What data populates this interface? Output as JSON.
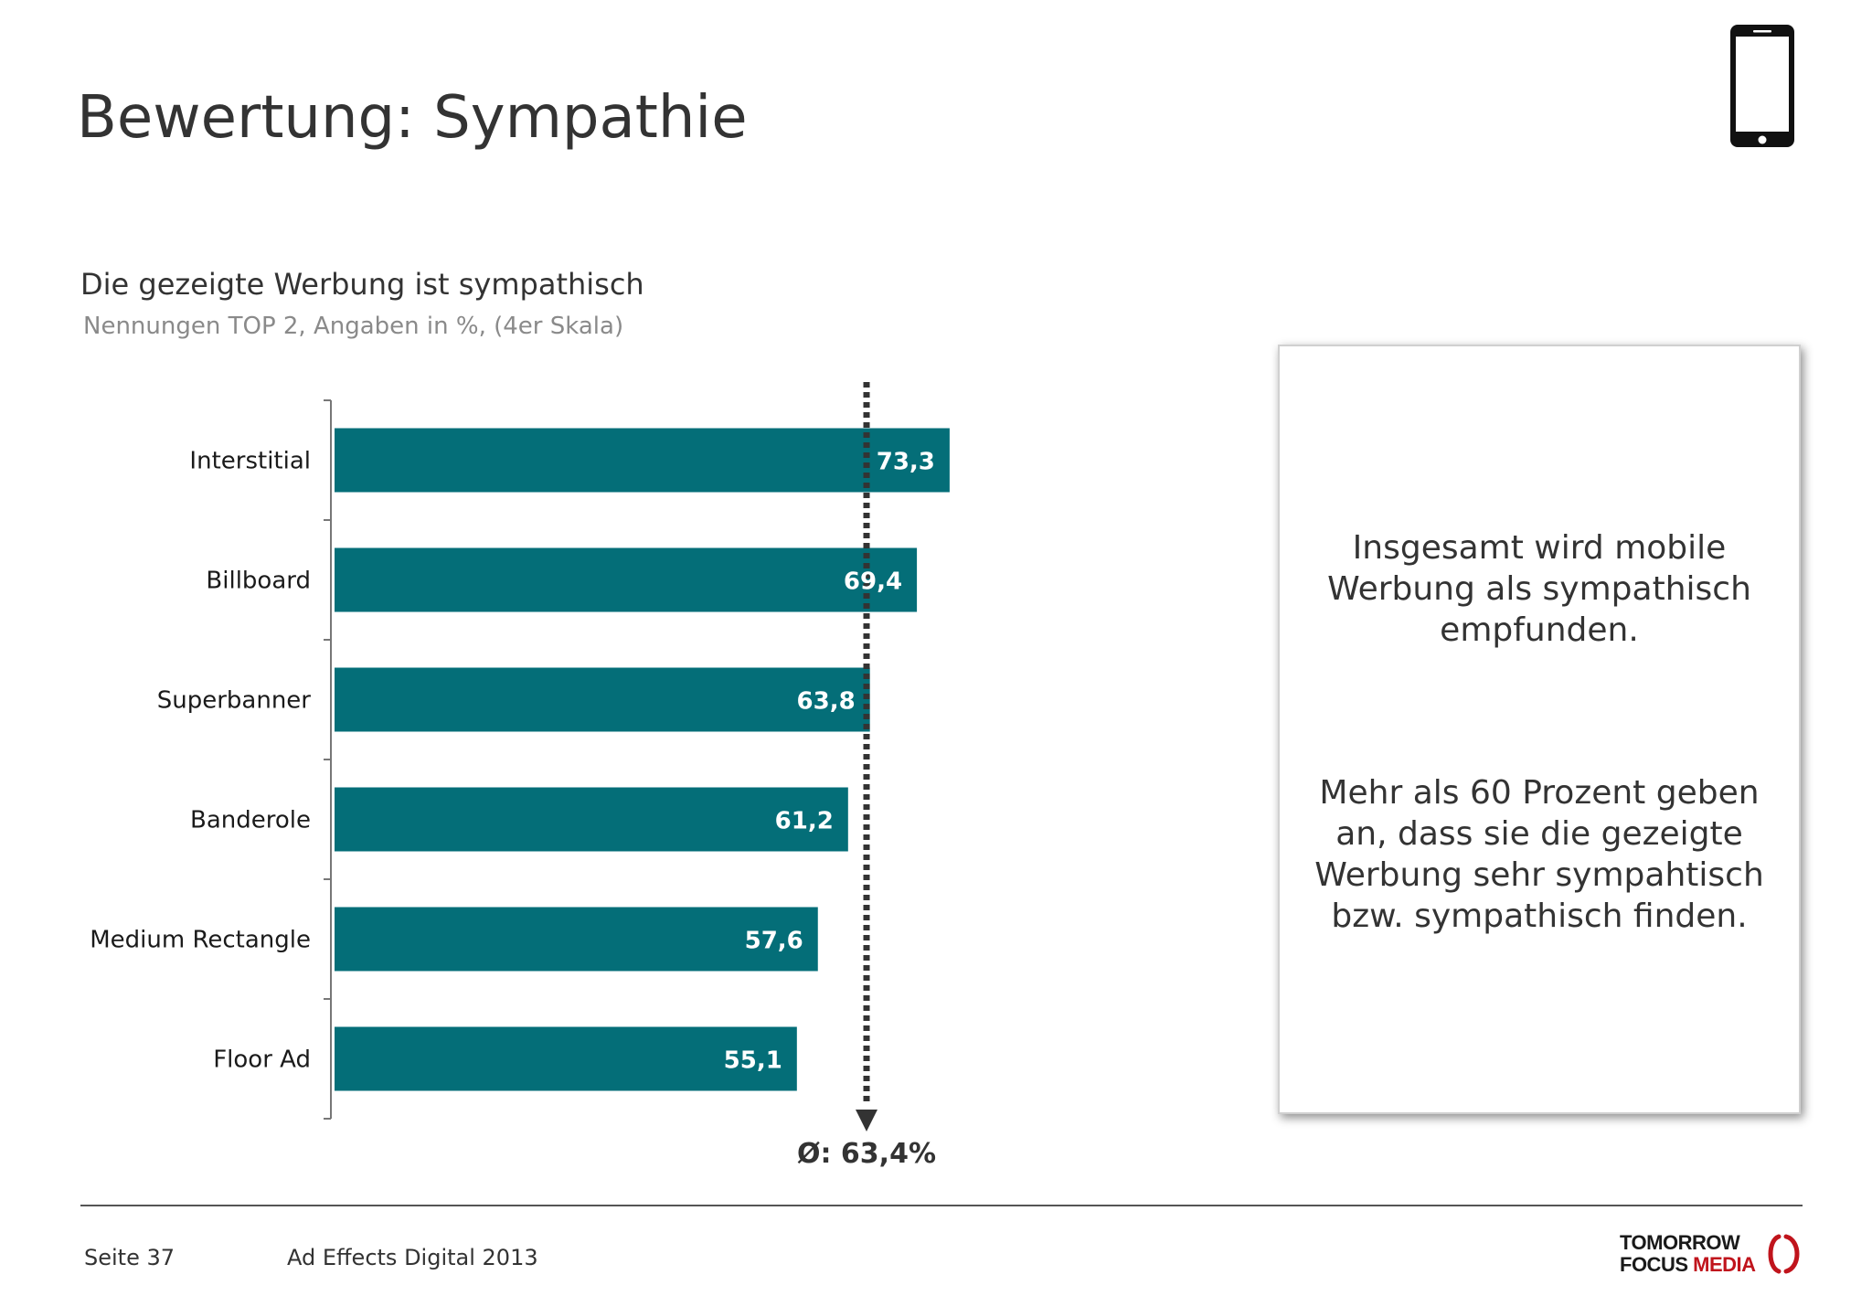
{
  "header": {
    "title": "Bewertung: Sympathie",
    "device_icon": "smartphone-icon"
  },
  "chart_data": {
    "type": "bar",
    "orientation": "horizontal",
    "title": "Die gezeigte Werbung ist sympathisch",
    "subtitle": "Nennungen TOP 2, Angaben in %, (4er Skala)",
    "categories": [
      "Interstitial",
      "Billboard",
      "Superbanner",
      "Banderole",
      "Medium Rectangle",
      "Floor Ad"
    ],
    "values": [
      73.3,
      69.4,
      63.8,
      61.2,
      57.6,
      55.1
    ],
    "value_labels": [
      "73,3",
      "69,4",
      "63,8",
      "61,2",
      "57,6",
      "55,1"
    ],
    "xlim": [
      0,
      100
    ],
    "bar_color": "#046e78",
    "average": {
      "value": 63.4,
      "label": "Ø: 63,4%",
      "style": "dotted"
    },
    "grid": false,
    "legend": "none"
  },
  "info_box": {
    "text_1": "Insgesamt wird mobile Werbung als sympathisch empfunden.",
    "text_2": "Mehr als 60 Prozent geben an, dass sie die gezeigte Werbung sehr sympahtisch bzw. sympathisch finden."
  },
  "footer": {
    "page": "Seite 37",
    "document": "Ad Effects Digital 2013",
    "logo_line1": "TOMORROW",
    "logo_line2a": "FOCUS",
    "logo_line2b": "MEDIA",
    "logo_color": "#c0141c"
  }
}
